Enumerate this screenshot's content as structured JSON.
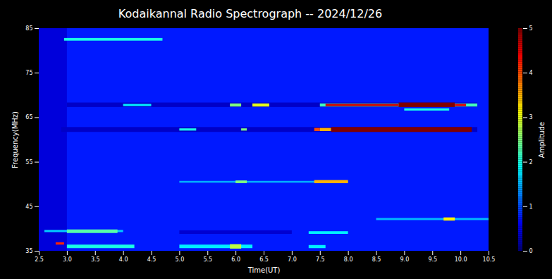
{
  "chart_data": {
    "type": "heatmap",
    "title": "Kodaikannal Radio Spectrograph -- 2024/12/26",
    "x_label": "Time(UT)",
    "y_label": "Frequency(MHz)",
    "xlim": [
      2.5,
      10.5
    ],
    "xticks": [
      2.5,
      {
        "value": 3,
        "label": "3.0"
      },
      3.5,
      {
        "value": 4,
        "label": "4.0"
      },
      4.5,
      {
        "value": 5,
        "label": "5.0"
      },
      5.5,
      {
        "value": 6,
        "label": "6.0"
      },
      6.5,
      {
        "value": 7,
        "label": "7.0"
      },
      7.5,
      {
        "value": 8,
        "label": "8.0"
      },
      8.5,
      {
        "value": 9,
        "label": "9.0"
      },
      9.5,
      {
        "value": 10,
        "label": "10.0"
      },
      10.5
    ],
    "ylim": [
      35,
      85
    ],
    "yticks": [
      35,
      45,
      55,
      65,
      75,
      85
    ],
    "colorbar": {
      "label": "Amplitude",
      "range": [
        0,
        5
      ],
      "ticks": [
        0,
        1,
        2,
        3,
        4,
        5
      ]
    },
    "cells": [
      {
        "x1": 2.5,
        "x2": 10.5,
        "y1": 35,
        "y2": 85,
        "amplitude": 0.75
      },
      {
        "x1": 2.5,
        "x2": 3.0,
        "y1": 35,
        "y2": 85,
        "amplitude": 0.45
      },
      {
        "x1": 2.95,
        "x2": 4.7,
        "y1": 82.2,
        "y2": 82.8,
        "amplitude": 2.0
      },
      {
        "x1": 3.0,
        "x2": 10.3,
        "y1": 67.3,
        "y2": 68.3,
        "amplitude": 0.35
      },
      {
        "x1": 4.0,
        "x2": 4.5,
        "y1": 67.5,
        "y2": 68.0,
        "amplitude": 1.8
      },
      {
        "x1": 5.9,
        "x2": 6.1,
        "y1": 67.4,
        "y2": 68.1,
        "amplitude": 2.5
      },
      {
        "x1": 6.3,
        "x2": 6.6,
        "y1": 67.4,
        "y2": 68.1,
        "amplitude": 3.0
      },
      {
        "x1": 7.5,
        "x2": 10.3,
        "y1": 67.4,
        "y2": 68.1,
        "amplitude": 2.2
      },
      {
        "x1": 7.6,
        "x2": 8.9,
        "y1": 67.5,
        "y2": 68.0,
        "amplitude": 4.6
      },
      {
        "x1": 8.9,
        "x2": 9.9,
        "y1": 67.3,
        "y2": 68.3,
        "amplitude": 5.0
      },
      {
        "x1": 9.9,
        "x2": 10.1,
        "y1": 67.5,
        "y2": 68.0,
        "amplitude": 4.5
      },
      {
        "x1": 9.0,
        "x2": 9.8,
        "y1": 66.5,
        "y2": 67.0,
        "amplitude": 2.0
      },
      {
        "x1": 2.9,
        "x2": 10.3,
        "y1": 61.7,
        "y2": 62.8,
        "amplitude": 0.35
      },
      {
        "x1": 5.0,
        "x2": 5.3,
        "y1": 62.0,
        "y2": 62.5,
        "amplitude": 2.0
      },
      {
        "x1": 6.1,
        "x2": 6.2,
        "y1": 62.0,
        "y2": 62.5,
        "amplitude": 2.5
      },
      {
        "x1": 7.4,
        "x2": 7.5,
        "y1": 61.9,
        "y2": 62.6,
        "amplitude": 4.0
      },
      {
        "x1": 7.5,
        "x2": 7.7,
        "y1": 61.9,
        "y2": 62.6,
        "amplitude": 3.5
      },
      {
        "x1": 7.7,
        "x2": 10.2,
        "y1": 61.7,
        "y2": 62.8,
        "amplitude": 5.0
      },
      {
        "x1": 5.0,
        "x2": 8.0,
        "y1": 50.3,
        "y2": 50.7,
        "amplitude": 1.5
      },
      {
        "x1": 6.0,
        "x2": 6.2,
        "y1": 50.2,
        "y2": 50.8,
        "amplitude": 2.5
      },
      {
        "x1": 7.4,
        "x2": 8.0,
        "y1": 50.2,
        "y2": 50.9,
        "amplitude": 3.5
      },
      {
        "x1": 8.5,
        "x2": 10.5,
        "y1": 41.9,
        "y2": 42.4,
        "amplitude": 1.5
      },
      {
        "x1": 9.7,
        "x2": 9.9,
        "y1": 41.8,
        "y2": 42.5,
        "amplitude": 3.2
      },
      {
        "x1": 5.0,
        "x2": 7.0,
        "y1": 38.8,
        "y2": 39.6,
        "amplitude": 0.4
      },
      {
        "x1": 2.6,
        "x2": 4.0,
        "y1": 39.2,
        "y2": 39.7,
        "amplitude": 1.6
      },
      {
        "x1": 3.0,
        "x2": 3.9,
        "y1": 39.0,
        "y2": 39.8,
        "amplitude": 2.3
      },
      {
        "x1": 7.3,
        "x2": 8.0,
        "y1": 38.8,
        "y2": 39.4,
        "amplitude": 1.8
      },
      {
        "x1": 3.0,
        "x2": 4.2,
        "y1": 35.6,
        "y2": 36.4,
        "amplitude": 2.0
      },
      {
        "x1": 5.0,
        "x2": 6.3,
        "y1": 35.6,
        "y2": 36.4,
        "amplitude": 1.8
      },
      {
        "x1": 5.9,
        "x2": 6.1,
        "y1": 35.5,
        "y2": 36.5,
        "amplitude": 2.8
      },
      {
        "x1": 7.3,
        "x2": 7.6,
        "y1": 35.6,
        "y2": 36.3,
        "amplitude": 1.8
      },
      {
        "x1": 2.8,
        "x2": 2.95,
        "y1": 36.4,
        "y2": 36.9,
        "amplitude": 4.2
      }
    ]
  }
}
